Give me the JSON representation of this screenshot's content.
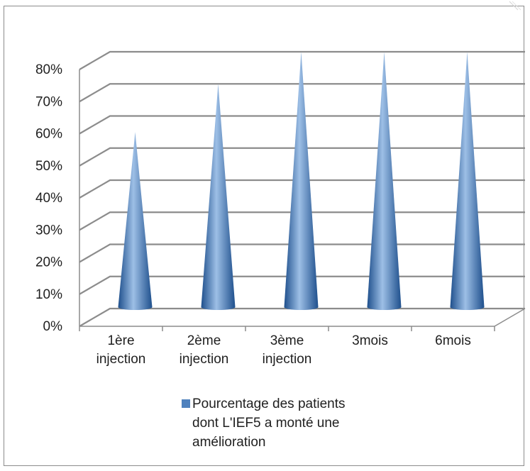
{
  "chart_data": {
    "type": "bar",
    "bar_shape": "cone",
    "view": "3d",
    "categories": [
      "1ère\ninjection",
      "2ème\ninjection",
      "3ème\ninjection",
      "3mois",
      "6mois"
    ],
    "series": [
      {
        "name": "Pourcentage des patients\ndont L'IEF5 a monté une\namélioration",
        "values": [
          0.55,
          0.7,
          0.8,
          0.8,
          0.8
        ]
      }
    ],
    "y_ticks": [
      "0%",
      "10%",
      "20%",
      "30%",
      "40%",
      "50%",
      "60%",
      "70%",
      "80%"
    ],
    "ylim": [
      0,
      0.8
    ],
    "grid": true,
    "legend_position": "bottom",
    "title": "",
    "xlabel": "",
    "ylabel": ""
  },
  "colors": {
    "bar_base": "#4f81bd",
    "bar_light": "#9dbfe6",
    "bar_dark": "#1e4f8c",
    "gridline": "#8c8c8c",
    "text": "#1f1f1f",
    "frame": "#8c8c8c"
  }
}
